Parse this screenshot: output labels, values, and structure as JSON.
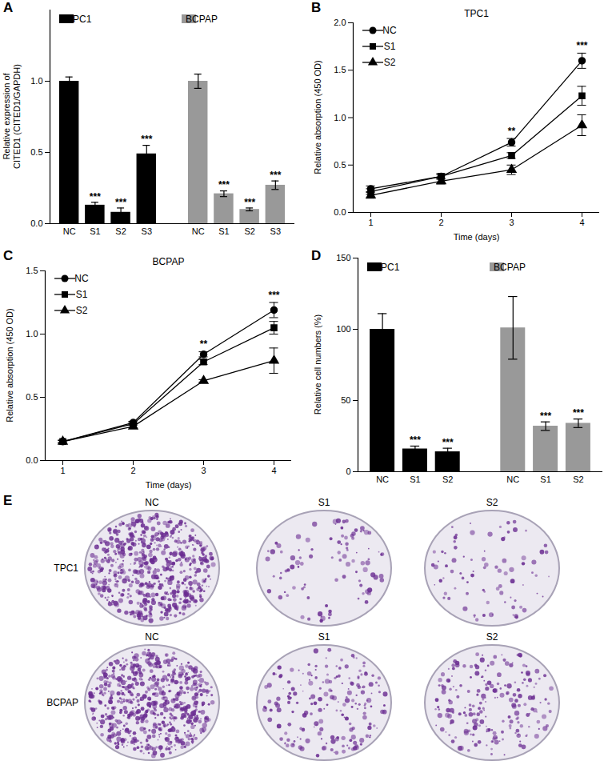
{
  "chart_data": [
    {
      "panel": "A",
      "type": "bar",
      "y_label": [
        "Relative expression of",
        "CITED1 (CITED1/GAPDH)"
      ],
      "categories": [
        "NC",
        "S1",
        "S2",
        "S3",
        "NC",
        "S1",
        "S2",
        "S3"
      ],
      "series": [
        {
          "name": "TPC1",
          "color": "#000000",
          "values": [
            1.0,
            0.13,
            0.08,
            0.49,
            null,
            null,
            null,
            null
          ],
          "errors": [
            0.03,
            0.02,
            0.03,
            0.06,
            null,
            null,
            null,
            null
          ],
          "annotations": [
            null,
            "***",
            "***",
            "***",
            null,
            null,
            null,
            null
          ]
        },
        {
          "name": "BCPAP",
          "color": "#999999",
          "values": [
            null,
            null,
            null,
            null,
            1.0,
            0.21,
            0.1,
            0.27
          ],
          "errors": [
            null,
            null,
            null,
            null,
            0.05,
            0.02,
            0.01,
            0.03
          ],
          "annotations": [
            null,
            null,
            null,
            null,
            null,
            "***",
            "***",
            "***"
          ]
        }
      ],
      "ylim": [
        0,
        1.5
      ],
      "yticks": [
        {
          "value": 0,
          "label": "0.0"
        },
        {
          "value": 0.5,
          "label": "0.5"
        },
        {
          "value": 1,
          "label": "1.0"
        }
      ],
      "legend": "top"
    },
    {
      "panel": "B",
      "type": "line",
      "title": "TPC1",
      "x_label": "Time (days)",
      "y_label": [
        "Relative absorption (450 OD)"
      ],
      "x": [
        1,
        2,
        3,
        4
      ],
      "series": [
        {
          "name": "NC",
          "marker": "circle",
          "values": [
            0.25,
            0.38,
            0.74,
            1.6
          ],
          "errors": [
            0.03,
            0.03,
            0.04,
            0.08
          ]
        },
        {
          "name": "S1",
          "marker": "square",
          "values": [
            0.22,
            0.38,
            0.6,
            1.23
          ],
          "errors": [
            0.03,
            0.02,
            0.03,
            0.1
          ]
        },
        {
          "name": "S2",
          "marker": "triangle",
          "values": [
            0.18,
            0.33,
            0.45,
            0.92
          ],
          "errors": [
            0.03,
            0.03,
            0.05,
            0.11
          ]
        }
      ],
      "annotations": {
        "x": [
          3,
          4
        ],
        "labels": [
          "**",
          "***"
        ]
      },
      "xlim": [
        0.75,
        4.25
      ],
      "xticks": [
        1,
        2,
        3,
        4
      ],
      "ylim": [
        0,
        2
      ],
      "yticks": [
        {
          "value": 0,
          "label": "0.0"
        },
        {
          "value": 0.5,
          "label": "0.5"
        },
        {
          "value": 1,
          "label": "1.0"
        },
        {
          "value": 1.5,
          "label": "1.5"
        },
        {
          "value": 2,
          "label": "2.0"
        }
      ],
      "legend": "top-left"
    },
    {
      "panel": "C",
      "type": "line",
      "title": "BCPAP",
      "x_label": "Time (days)",
      "y_label": [
        "Relative absorption (450 OD)"
      ],
      "x": [
        1,
        2,
        3,
        4
      ],
      "series": [
        {
          "name": "NC",
          "marker": "circle",
          "values": [
            0.15,
            0.3,
            0.84,
            1.19
          ],
          "errors": [
            0.01,
            0.01,
            0.02,
            0.06
          ]
        },
        {
          "name": "S1",
          "marker": "square",
          "values": [
            0.15,
            0.29,
            0.78,
            1.05
          ],
          "errors": [
            0.01,
            0.01,
            0.02,
            0.05
          ]
        },
        {
          "name": "S2",
          "marker": "triangle",
          "values": [
            0.15,
            0.27,
            0.63,
            0.79
          ],
          "errors": [
            0.01,
            0.01,
            0.01,
            0.1
          ]
        }
      ],
      "annotations": {
        "x": [
          3,
          4
        ],
        "labels": [
          "**",
          "***"
        ]
      },
      "xlim": [
        0.75,
        4.25
      ],
      "xticks": [
        1,
        2,
        3,
        4
      ],
      "ylim": [
        0,
        1.5
      ],
      "yticks": [
        {
          "value": 0,
          "label": "0.0"
        },
        {
          "value": 0.5,
          "label": "0.5"
        },
        {
          "value": 1,
          "label": "1.0"
        },
        {
          "value": 1.5,
          "label": "1.5"
        }
      ],
      "legend": "top-left"
    },
    {
      "panel": "D",
      "type": "bar",
      "y_label": [
        "Relative cell numbers (%)"
      ],
      "categories": [
        "NC",
        "S1",
        "S2",
        "NC",
        "S1",
        "S2"
      ],
      "series": [
        {
          "name": "TPC1",
          "color": "#000000",
          "values": [
            100,
            16,
            14,
            null,
            null,
            null
          ],
          "errors": [
            11,
            2,
            2.5,
            null,
            null,
            null
          ],
          "annotations": [
            null,
            "***",
            "***",
            null,
            null,
            null
          ]
        },
        {
          "name": "BCPAP",
          "color": "#999999",
          "values": [
            null,
            null,
            null,
            101,
            32,
            34
          ],
          "errors": [
            null,
            null,
            null,
            22,
            3,
            3
          ],
          "annotations": [
            null,
            null,
            null,
            null,
            "***",
            "***"
          ]
        }
      ],
      "ylim": [
        0,
        150
      ],
      "yticks": [
        0,
        50,
        100,
        150
      ],
      "legend": "top"
    }
  ],
  "panel_e": {
    "panel": "E",
    "columns": [
      "NC",
      "S1",
      "S2"
    ],
    "rows": [
      "TPC1",
      "BCPAP"
    ]
  }
}
